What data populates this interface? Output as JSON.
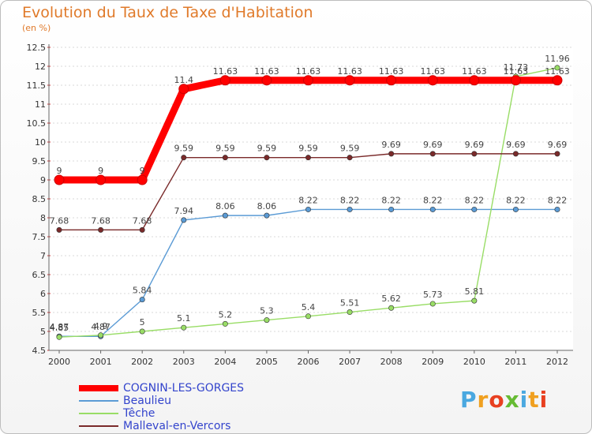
{
  "header": {
    "title": "Evolution du Taux de Taxe d'Habitation",
    "unit": "(en %)"
  },
  "logo": {
    "text": "Proxiti",
    "colors": [
      "#4aa8e0",
      "#f0a020",
      "#e84020",
      "#66bb33",
      "#4aa8e0",
      "#f0a020",
      "#e84020"
    ]
  },
  "chart_data": {
    "type": "line",
    "title": "Evolution du Taux de Taxe d'Habitation",
    "ylabel": "(en %)",
    "xlabel": "",
    "x": [
      "2000",
      "2001",
      "2002",
      "2003",
      "2004",
      "2005",
      "2006",
      "2007",
      "2008",
      "2009",
      "2010",
      "2011",
      "2012"
    ],
    "ylim": [
      4.5,
      12.5
    ],
    "yticks": [
      "4.5",
      "5",
      "5.5",
      "6",
      "6.5",
      "7",
      "7.5",
      "8",
      "8.5",
      "9",
      "9.5",
      "10",
      "10.5",
      "11",
      "11.5",
      "12",
      "12.5"
    ],
    "grid": "horizontal dotted",
    "legend": "bottom-left",
    "series": [
      {
        "name": "COGNIN-LES-GORGES",
        "color": "#ff0000",
        "emphasis": "thick",
        "values": [
          9,
          9,
          9,
          11.4,
          11.63,
          11.63,
          11.63,
          11.63,
          11.63,
          11.63,
          11.63,
          11.63,
          11.63
        ],
        "labels": [
          "9",
          "9",
          "9",
          "11.4",
          "11.63",
          "11.63",
          "11.63",
          "11.63",
          "11.63",
          "11.63",
          "11.63",
          "11.63",
          "11.63"
        ]
      },
      {
        "name": "Beaulieu",
        "color": "#5b9bd5",
        "values": [
          4.87,
          4.87,
          5.84,
          7.94,
          8.06,
          8.06,
          8.22,
          8.22,
          8.22,
          8.22,
          8.22,
          8.22,
          8.22
        ],
        "labels": [
          "4.87",
          "4.87",
          "5.84",
          "7.94",
          "8.06",
          "8.06",
          "8.22",
          "8.22",
          "8.22",
          "8.22",
          "8.22",
          "8.22",
          "8.22"
        ]
      },
      {
        "name": "Têche",
        "color": "#99dd66",
        "values": [
          4.85,
          4.9,
          5,
          5.1,
          5.2,
          5.3,
          5.4,
          5.51,
          5.62,
          5.73,
          5.81,
          11.73,
          11.96
        ],
        "labels": [
          "4.85",
          "4.9",
          "5",
          "5.1",
          "5.2",
          "5.3",
          "5.4",
          "5.51",
          "5.62",
          "5.73",
          "5.81",
          "11.73",
          "11.96"
        ]
      },
      {
        "name": "Malleval-en-Vercors",
        "color": "#7a2a2a",
        "values": [
          7.68,
          7.68,
          7.68,
          9.59,
          9.59,
          9.59,
          9.59,
          9.59,
          9.69,
          9.69,
          9.69,
          9.69,
          9.69
        ],
        "labels": [
          "7.68",
          "7.68",
          "7.68",
          "9.59",
          "9.59",
          "9.59",
          "9.59",
          "9.59",
          "9.69",
          "9.69",
          "9.69",
          "9.69",
          "9.69"
        ]
      }
    ]
  }
}
